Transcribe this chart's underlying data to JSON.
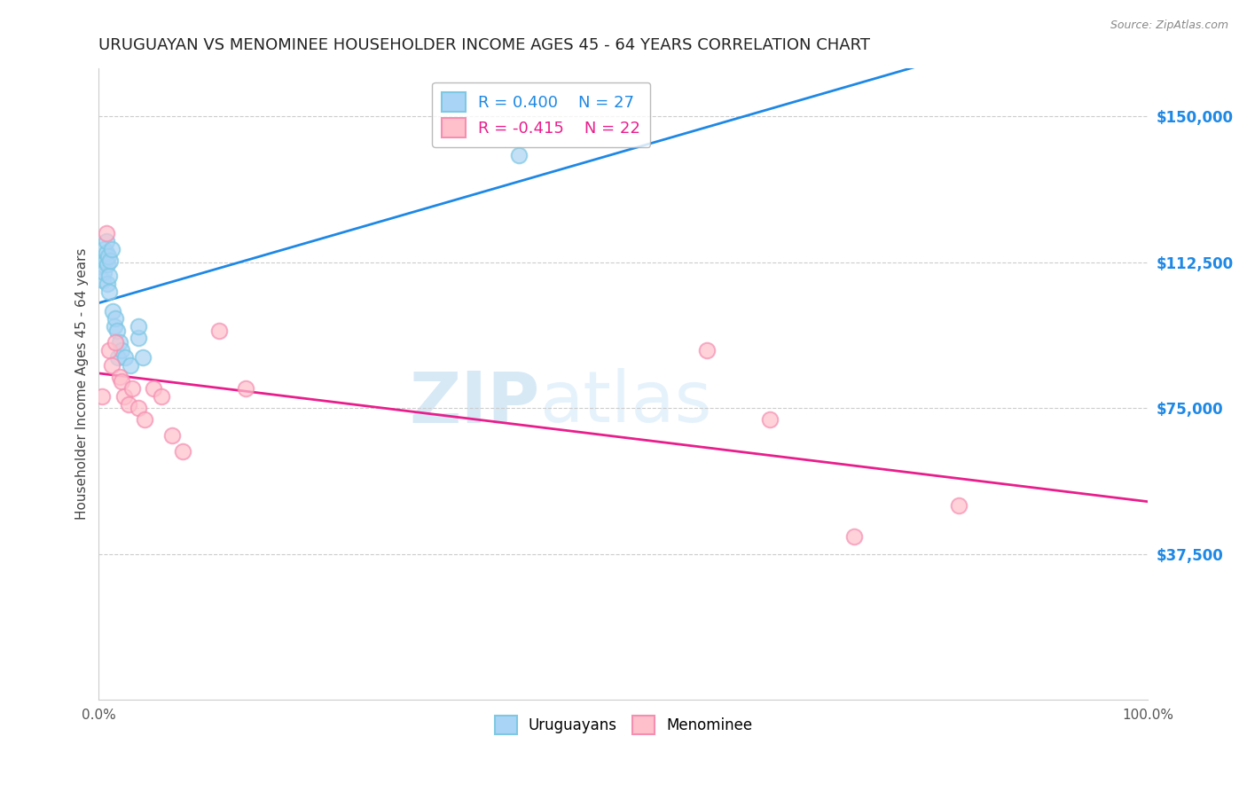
{
  "title": "URUGUAYAN VS MENOMINEE HOUSEHOLDER INCOME AGES 45 - 64 YEARS CORRELATION CHART",
  "source": "Source: ZipAtlas.com",
  "ylabel": "Householder Income Ages 45 - 64 years",
  "ytick_labels": [
    "$37,500",
    "$75,000",
    "$112,500",
    "$150,000"
  ],
  "ytick_values": [
    37500,
    75000,
    112500,
    150000
  ],
  "ylim": [
    0,
    162500
  ],
  "xlim": [
    0,
    1.0
  ],
  "legend_blue_r": "R = 0.400",
  "legend_blue_n": "N = 27",
  "legend_pink_r": "R = -0.415",
  "legend_pink_n": "N = 22",
  "uruguayan_x": [
    0.003,
    0.004,
    0.005,
    0.005,
    0.006,
    0.007,
    0.007,
    0.008,
    0.008,
    0.009,
    0.01,
    0.01,
    0.011,
    0.012,
    0.013,
    0.015,
    0.016,
    0.017,
    0.018,
    0.02,
    0.022,
    0.025,
    0.03,
    0.038,
    0.042,
    0.038,
    0.4
  ],
  "uruguayan_y": [
    112000,
    108000,
    116000,
    110000,
    113000,
    115000,
    118000,
    107000,
    112000,
    114000,
    105000,
    109000,
    113000,
    116000,
    100000,
    96000,
    98000,
    95000,
    88000,
    92000,
    90000,
    88000,
    86000,
    93000,
    88000,
    96000,
    140000
  ],
  "menominee_x": [
    0.003,
    0.007,
    0.01,
    0.012,
    0.016,
    0.02,
    0.022,
    0.024,
    0.028,
    0.032,
    0.038,
    0.044,
    0.052,
    0.06,
    0.07,
    0.08,
    0.115,
    0.14,
    0.58,
    0.64,
    0.72,
    0.82
  ],
  "menominee_y": [
    78000,
    120000,
    90000,
    86000,
    92000,
    83000,
    82000,
    78000,
    76000,
    80000,
    75000,
    72000,
    80000,
    78000,
    68000,
    64000,
    95000,
    80000,
    90000,
    72000,
    42000,
    50000
  ],
  "blue_color": "#7ec8e3",
  "blue_fill": "#aad4f5",
  "pink_color": "#f48fb1",
  "pink_fill": "#ffc0cb",
  "blue_line_color": "#1e88e5",
  "pink_line_color": "#e91e8c",
  "grid_color": "#cccccc",
  "background_color": "#ffffff",
  "title_color": "#222222",
  "axis_label_color": "#444444",
  "ytick_color": "#1e88e5",
  "watermark_zip": "ZIP",
  "watermark_atlas": "atlas"
}
